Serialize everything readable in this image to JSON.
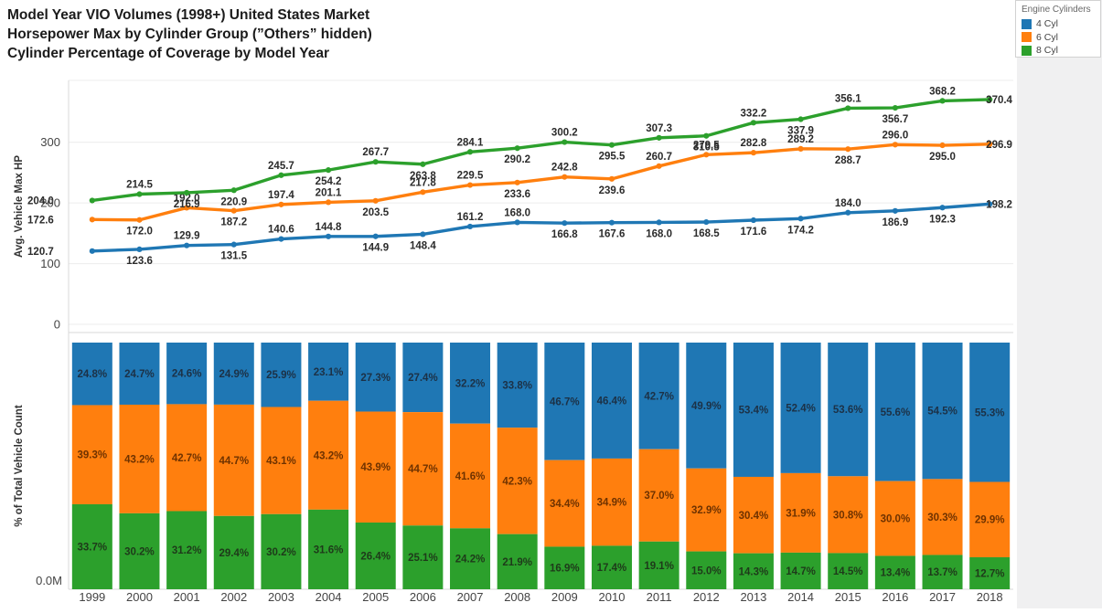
{
  "title_lines": [
    "Model Year VIO Volumes (1998+) United States Market",
    "Horsepower Max by Cylinder Group (”Others” hidden)",
    "Cylinder Percentage of Coverage by Model Year"
  ],
  "legend": {
    "title": "Engine Cylinders",
    "items": [
      {
        "label": "4 Cyl",
        "color": "#1f77b4"
      },
      {
        "label": "6 Cyl",
        "color": "#ff7f0e"
      },
      {
        "label": "8 Cyl",
        "color": "#2ca02c"
      }
    ]
  },
  "chart_data": [
    {
      "type": "line",
      "title": "Horsepower Max by Cylinder Group",
      "ylabel": "Avg. Vehicle Max HP",
      "yticks": [
        "0",
        "100",
        "200",
        "300"
      ],
      "ytick_values": [
        0,
        100,
        200,
        300
      ],
      "ylim": [
        0,
        400
      ],
      "grid": true,
      "x": [
        1999,
        2000,
        2001,
        2002,
        2003,
        2004,
        2005,
        2006,
        2007,
        2008,
        2009,
        2010,
        2011,
        2012,
        2013,
        2014,
        2015,
        2016,
        2017,
        2018
      ],
      "series": [
        {
          "name": "4 Cyl",
          "color": "#1f77b4",
          "values": [
            120.7,
            123.6,
            129.9,
            131.5,
            140.6,
            144.8,
            144.9,
            148.4,
            161.2,
            168.0,
            166.8,
            167.6,
            168.0,
            168.5,
            171.6,
            174.2,
            184.0,
            186.9,
            192.3,
            198.2
          ],
          "label_pos": [
            "left",
            "below",
            "above",
            "below",
            "above",
            "above",
            "below",
            "below",
            "above",
            "above",
            "below",
            "below",
            "below",
            "below",
            "below",
            "below",
            "above",
            "below",
            "below",
            "right"
          ]
        },
        {
          "name": "6 Cyl",
          "color": "#ff7f0e",
          "values": [
            172.6,
            172.0,
            192.0,
            187.2,
            197.4,
            201.1,
            203.5,
            217.8,
            229.5,
            233.6,
            242.8,
            239.6,
            260.7,
            279.5,
            282.8,
            289.2,
            288.7,
            296.0,
            295.0,
            296.9
          ],
          "label_pos": [
            "left",
            "below",
            "above",
            "below",
            "above",
            "above",
            "below",
            "above",
            "above",
            "below",
            "above",
            "below",
            "above",
            "above",
            "above",
            "above",
            "below",
            "above",
            "below",
            "right"
          ]
        },
        {
          "name": "8 Cyl",
          "color": "#2ca02c",
          "values": [
            204.0,
            214.5,
            216.9,
            220.9,
            245.7,
            254.2,
            267.7,
            263.8,
            284.1,
            290.2,
            300.2,
            295.5,
            307.3,
            310.5,
            332.2,
            337.9,
            356.1,
            356.7,
            368.2,
            370.4
          ],
          "label_pos": [
            "left",
            "above",
            "below",
            "below",
            "above",
            "below",
            "above",
            "below",
            "above",
            "below",
            "above",
            "below",
            "above",
            "below",
            "above",
            "below",
            "above",
            "below",
            "above",
            "right"
          ]
        }
      ],
      "label_color": "#2b2b2b"
    },
    {
      "type": "bar",
      "subtype": "stacked_percent",
      "title": "Cylinder Percentage of Coverage by Model Year",
      "ylabel": "% of Total Vehicle Count",
      "ytick_bottom": "0.0M",
      "categories": [
        "1999",
        "2000",
        "2001",
        "2002",
        "2003",
        "2004",
        "2005",
        "2006",
        "2007",
        "2008",
        "2009",
        "2010",
        "2011",
        "2012",
        "2013",
        "2014",
        "2015",
        "2016",
        "2017",
        "2018"
      ],
      "stack_order_top_to_bottom": [
        "4 Cyl",
        "6 Cyl",
        "8 Cyl"
      ],
      "series": [
        {
          "name": "4 Cyl",
          "color": "#1f77b4",
          "label_color": "#1c3146",
          "values": [
            24.8,
            24.7,
            24.6,
            24.9,
            25.9,
            23.1,
            27.3,
            27.4,
            32.2,
            33.8,
            46.7,
            46.4,
            42.7,
            49.9,
            53.4,
            52.4,
            53.6,
            55.6,
            54.5,
            55.3
          ]
        },
        {
          "name": "6 Cyl",
          "color": "#ff7f0e",
          "label_color": "#6e3200",
          "values": [
            39.3,
            43.2,
            42.7,
            44.7,
            43.1,
            43.2,
            43.9,
            44.7,
            41.6,
            42.3,
            34.4,
            34.9,
            37.0,
            32.9,
            30.4,
            31.9,
            30.8,
            30.0,
            30.3,
            29.9
          ]
        },
        {
          "name": "8 Cyl",
          "color": "#2ca02c",
          "label_color": "#1e3a1a",
          "values": [
            33.7,
            30.2,
            31.2,
            29.4,
            30.2,
            31.6,
            26.4,
            25.1,
            24.2,
            21.9,
            16.9,
            17.4,
            19.1,
            15.0,
            14.3,
            14.7,
            14.5,
            13.4,
            13.7,
            12.7
          ]
        }
      ]
    }
  ],
  "colors": {
    "axis_line": "#d8d8d8",
    "grid_line": "#ececec",
    "tick_text": "#444444",
    "axis_title": "#333333",
    "gutter": "#f0f0f1"
  }
}
